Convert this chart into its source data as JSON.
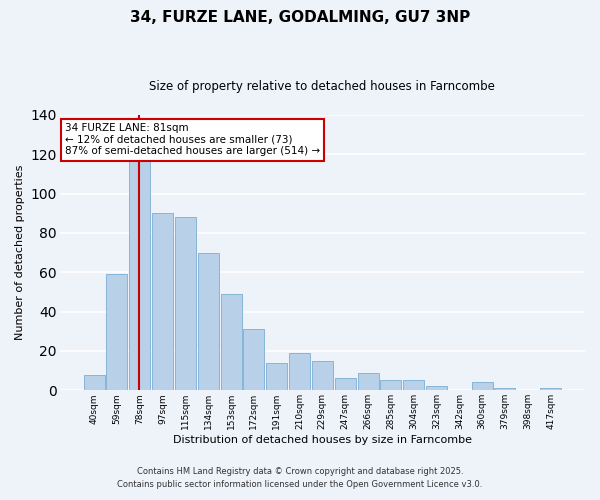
{
  "title": "34, FURZE LANE, GODALMING, GU7 3NP",
  "subtitle": "Size of property relative to detached houses in Farncombe",
  "xlabel": "Distribution of detached houses by size in Farncombe",
  "ylabel": "Number of detached properties",
  "footer_line1": "Contains HM Land Registry data © Crown copyright and database right 2025.",
  "footer_line2": "Contains public sector information licensed under the Open Government Licence v3.0.",
  "bins": [
    "40sqm",
    "59sqm",
    "78sqm",
    "97sqm",
    "115sqm",
    "134sqm",
    "153sqm",
    "172sqm",
    "191sqm",
    "210sqm",
    "229sqm",
    "247sqm",
    "266sqm",
    "285sqm",
    "304sqm",
    "323sqm",
    "342sqm",
    "360sqm",
    "379sqm",
    "398sqm",
    "417sqm"
  ],
  "values": [
    8,
    59,
    118,
    90,
    88,
    70,
    49,
    31,
    14,
    19,
    15,
    6,
    9,
    5,
    5,
    2,
    0,
    4,
    1,
    0,
    1
  ],
  "bar_color": "#b8d0e8",
  "bar_edge_color": "#7aadd4",
  "vline_x_index": 2,
  "vline_color": "#cc0000",
  "annotation_title": "34 FURZE LANE: 81sqm",
  "annotation_line1": "← 12% of detached houses are smaller (73)",
  "annotation_line2": "87% of semi-detached houses are larger (514) →",
  "annotation_box_edgecolor": "#cc0000",
  "ylim": [
    0,
    140
  ],
  "yticks": [
    0,
    20,
    40,
    60,
    80,
    100,
    120,
    140
  ],
  "background_color": "#eef2f9",
  "grid_color": "white"
}
